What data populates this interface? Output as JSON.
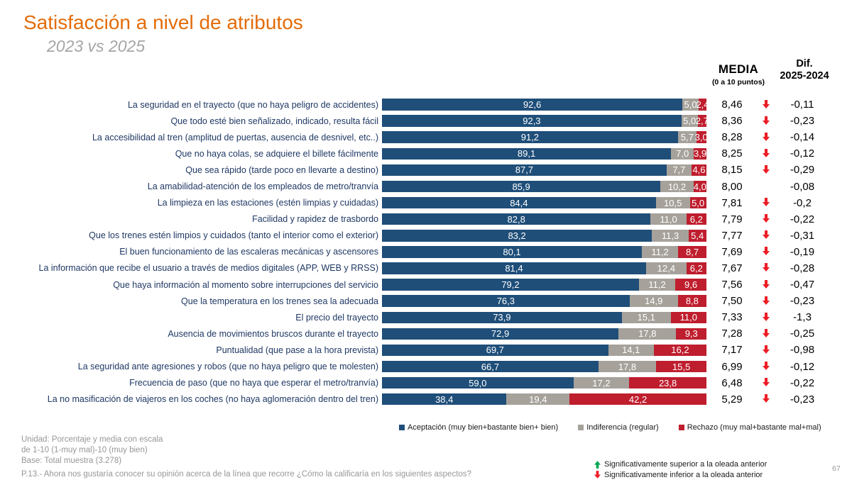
{
  "slide": {
    "title": "Satisfacción a nivel de atributos",
    "subtitle": "2023 vs 2025",
    "page_number": "67"
  },
  "columns": {
    "media_label": "MEDIA",
    "media_sub": "(0 a 10 puntos)",
    "dif_line1": "Dif.",
    "dif_line2": "2025-2024"
  },
  "colors": {
    "title_orange": "#E36C0A",
    "aceptacion_blue": "#1F4E79",
    "indiferencia_gray": "#A6A29B",
    "rechazo_red": "#BF1E2E",
    "arrow_down_red": "#ED1C24",
    "arrow_up_green": "#00A651",
    "label_navy": "#1F3864"
  },
  "chart_data": {
    "type": "bar",
    "orientation": "horizontal",
    "stacked": true,
    "unit": "percent",
    "xlim": [
      0,
      100
    ],
    "series_names": [
      "Aceptación",
      "Indiferencia",
      "Rechazo"
    ],
    "note": "values shown as Spanish decimal-comma strings; bar widths are the numeric percent",
    "rows": [
      {
        "label": "La seguridad en el trayecto (que no haya peligro de accidentes)",
        "aceptacion": "92,6",
        "indiferencia": "5,0",
        "rechazo": "2,4",
        "media": "8,46",
        "arrow": "down",
        "dif": "-0,11"
      },
      {
        "label": "Que todo esté bien señalizado, indicado, resulta fácil",
        "aceptacion": "92,3",
        "indiferencia": "5,0",
        "rechazo": "2,7",
        "media": "8,36",
        "arrow": "down",
        "dif": "-0,23"
      },
      {
        "label": "La accesibilidad al tren (amplitud de puertas, ausencia de desnivel, etc..)",
        "aceptacion": "91,2",
        "indiferencia": "5,7",
        "rechazo": "3,0",
        "media": "8,28",
        "arrow": "down",
        "dif": "-0,14"
      },
      {
        "label": "Que no haya colas, se adquiere el billete fácilmente",
        "aceptacion": "89,1",
        "indiferencia": "7,0",
        "rechazo": "3,9",
        "media": "8,25",
        "arrow": "down",
        "dif": "-0,12"
      },
      {
        "label": "Que sea rápido (tarde poco en llevarte a destino)",
        "aceptacion": "87,7",
        "indiferencia": "7,7",
        "rechazo": "4,6",
        "media": "8,15",
        "arrow": "down",
        "dif": "-0,29"
      },
      {
        "label": "La amabilidad-atención de los empleados de metro/tranvía",
        "aceptacion": "85,9",
        "indiferencia": "10,2",
        "rechazo": "4,0",
        "media": "8,00",
        "arrow": "none",
        "dif": "-0,08"
      },
      {
        "label": "La limpieza en las estaciones (estén limpias y cuidadas)",
        "aceptacion": "84,4",
        "indiferencia": "10,5",
        "rechazo": "5,0",
        "media": "7,81",
        "arrow": "down",
        "dif": "-0,2"
      },
      {
        "label": "Facilidad y rapidez de trasbordo",
        "aceptacion": "82,8",
        "indiferencia": "11,0",
        "rechazo": "6,2",
        "media": "7,79",
        "arrow": "down",
        "dif": "-0,22"
      },
      {
        "label": "Que los trenes estén limpios y cuidados (tanto el interior como el exterior)",
        "aceptacion": "83,2",
        "indiferencia": "11,3",
        "rechazo": "5,4",
        "media": "7,77",
        "arrow": "down",
        "dif": "-0,31"
      },
      {
        "label": "El buen funcionamiento de las escaleras mecánicas y ascensores",
        "aceptacion": "80,1",
        "indiferencia": "11,2",
        "rechazo": "8,7",
        "media": "7,69",
        "arrow": "down",
        "dif": "-0,19"
      },
      {
        "label": "La información que recibe el usuario a través de medios digitales (APP, WEB y RRSS)",
        "aceptacion": "81,4",
        "indiferencia": "12,4",
        "rechazo": "6,2",
        "media": "7,67",
        "arrow": "down",
        "dif": "-0,28"
      },
      {
        "label": "Que haya información al momento sobre interrupciones del servicio",
        "aceptacion": "79,2",
        "indiferencia": "11,2",
        "rechazo": "9,6",
        "media": "7,56",
        "arrow": "down",
        "dif": "-0,47"
      },
      {
        "label": "Que la temperatura en los trenes sea la adecuada",
        "aceptacion": "76,3",
        "indiferencia": "14,9",
        "rechazo": "8,8",
        "media": "7,50",
        "arrow": "down",
        "dif": "-0,23"
      },
      {
        "label": "El precio del trayecto",
        "aceptacion": "73,9",
        "indiferencia": "15,1",
        "rechazo": "11,0",
        "media": "7,33",
        "arrow": "down",
        "dif": "-1,3"
      },
      {
        "label": "Ausencia de movimientos bruscos durante el trayecto",
        "aceptacion": "72,9",
        "indiferencia": "17,8",
        "rechazo": "9,3",
        "media": "7,28",
        "arrow": "down",
        "dif": "-0,25"
      },
      {
        "label": "Puntualidad (que pase a la hora prevista)",
        "aceptacion": "69,7",
        "indiferencia": "14,1",
        "rechazo": "16,2",
        "media": "7,17",
        "arrow": "down",
        "dif": "-0,98"
      },
      {
        "label": "La seguridad ante agresiones y robos (que no haya peligro que te molesten)",
        "aceptacion": "66,7",
        "indiferencia": "17,8",
        "rechazo": "15,5",
        "media": "6,99",
        "arrow": "down",
        "dif": "-0,12"
      },
      {
        "label": "Frecuencia de paso  (que no haya que esperar el metro/tranvía)",
        "aceptacion": "59,0",
        "indiferencia": "17,2",
        "rechazo": "23,8",
        "media": "6,48",
        "arrow": "down",
        "dif": "-0,22"
      },
      {
        "label": "La no masificación de viajeros en los coches (no haya aglomeración dentro del tren)",
        "aceptacion": "38,4",
        "indiferencia": "19,4",
        "rechazo": "42,2",
        "media": "5,29",
        "arrow": "down",
        "dif": "-0,23"
      }
    ]
  },
  "legend": {
    "items": [
      {
        "name": "aceptacion",
        "label": "Aceptación (muy bien+bastante bien+ bien)"
      },
      {
        "name": "indiferencia",
        "label": "Indiferencia (regular)"
      },
      {
        "name": "rechazo",
        "label": "Rechazo (muy mal+bastante mal+mal)"
      }
    ]
  },
  "footer": {
    "unit_line1": "Unidad: Porcentaje y media con escala",
    "unit_line2": "de 1-10 (1-muy mal)-10 (muy bien)",
    "base_line": "Base: Total muestra (3.278)",
    "question": "P.13.- Ahora nos gustaría conocer su opinión acerca de la línea que recorre ¿Cómo la calificaría en los siguientes aspectos?"
  },
  "significance": {
    "superior": "Significativamente superior a la oleada anterior",
    "inferior": "Significativamente inferior a la oleada anterior"
  }
}
